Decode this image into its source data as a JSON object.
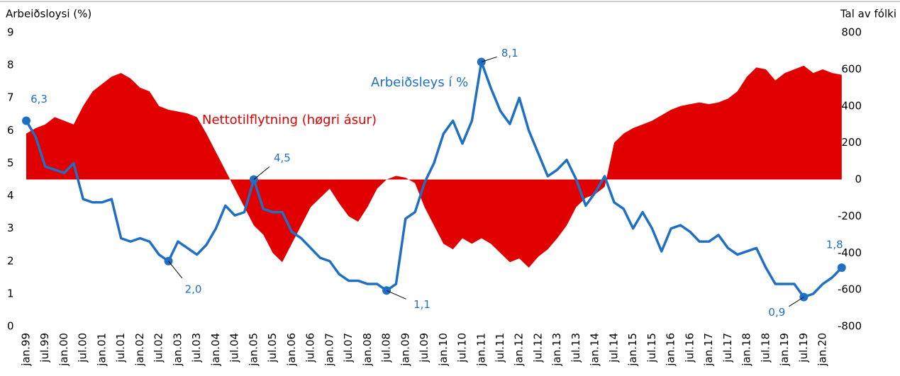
{
  "chart_data": {
    "type": "line",
    "ylabel": "Arbeiðsloysi (%)",
    "y2label": "Tal av fólki",
    "categories": [
      "jan.99",
      null,
      "jul.99",
      null,
      "jan.00",
      null,
      "jul.00",
      null,
      "jan.01",
      null,
      "jul.01",
      null,
      "jan.02",
      null,
      "jul.02",
      null,
      "jan.03",
      null,
      "jul.03",
      null,
      "jan.04",
      null,
      "jul.04",
      null,
      "jan.05",
      null,
      "jul.05",
      null,
      "jan.06",
      null,
      "jul.06",
      null,
      "jan.07",
      null,
      "jul.07",
      null,
      "jan.08",
      null,
      "jul.08",
      null,
      "jan.09",
      null,
      "jul.09",
      null,
      "jan.10",
      null,
      "jul.10",
      null,
      "jan.11",
      null,
      "jul.11",
      null,
      "jan.12",
      null,
      "jul.12",
      null,
      "jan.13",
      null,
      "jul.13",
      null,
      "jan.14",
      null,
      "jul.14",
      null,
      "jan.15",
      null,
      "jul.15",
      null,
      "jan.16",
      null,
      "jul.16",
      null,
      "jan.17",
      null,
      "jul.17",
      null,
      "jan.18",
      null,
      "jul.18",
      null,
      "jan.19",
      null,
      "jul.19",
      null,
      "jan.20",
      null,
      null
    ],
    "series": [
      {
        "name": "Arbeiðsleys í %",
        "color": "#1f6fc5",
        "axis": "y",
        "values": [
          6.3,
          5.8,
          4.9,
          4.8,
          4.7,
          5.0,
          3.9,
          3.8,
          3.8,
          3.9,
          2.7,
          2.6,
          2.7,
          2.6,
          2.2,
          2.0,
          2.6,
          2.4,
          2.2,
          2.5,
          3.0,
          3.7,
          3.4,
          3.5,
          4.5,
          3.6,
          3.5,
          3.5,
          2.9,
          2.7,
          2.4,
          2.1,
          2.0,
          1.6,
          1.4,
          1.4,
          1.3,
          1.3,
          1.1,
          1.3,
          3.3,
          3.5,
          4.4,
          5.0,
          5.9,
          6.3,
          5.6,
          6.3,
          8.1,
          7.3,
          6.6,
          6.2,
          7.0,
          6.0,
          5.3,
          4.6,
          4.8,
          5.1,
          4.5,
          3.7,
          4.1,
          4.6,
          3.8,
          3.6,
          3.0,
          3.5,
          3.0,
          2.3,
          3.0,
          3.1,
          2.9,
          2.6,
          2.6,
          2.8,
          2.4,
          2.2,
          2.3,
          2.4,
          1.8,
          1.3,
          1.3,
          1.3,
          0.9,
          1.0,
          1.3,
          1.5,
          1.8
        ],
        "value_labels": [
          "6,3",
          null,
          null,
          null,
          null,
          null,
          null,
          null,
          null,
          null,
          null,
          null,
          null,
          null,
          null,
          "2,0",
          null,
          null,
          null,
          null,
          null,
          null,
          null,
          null,
          "4,5",
          null,
          null,
          null,
          null,
          null,
          null,
          null,
          null,
          null,
          null,
          null,
          null,
          null,
          "1,1",
          null,
          null,
          null,
          null,
          null,
          null,
          null,
          null,
          null,
          "8,1",
          null,
          null,
          null,
          null,
          null,
          null,
          null,
          null,
          null,
          null,
          null,
          null,
          null,
          null,
          null,
          null,
          null,
          null,
          null,
          null,
          null,
          null,
          null,
          null,
          null,
          null,
          null,
          null,
          null,
          null,
          null,
          null,
          null,
          "0,9",
          null,
          null,
          null,
          "1,8"
        ]
      },
      {
        "name": "Nettotilflytning (høgri ásur)",
        "color": "#e00000",
        "axis": "y2",
        "values": [
          250,
          280,
          300,
          340,
          320,
          300,
          400,
          480,
          520,
          560,
          580,
          550,
          500,
          480,
          400,
          380,
          370,
          360,
          340,
          250,
          150,
          50,
          -50,
          -150,
          -250,
          -300,
          -400,
          -450,
          -350,
          -250,
          -150,
          -100,
          -50,
          -130,
          -200,
          -230,
          -150,
          -50,
          0,
          20,
          10,
          -20,
          -150,
          -250,
          -350,
          -380,
          -320,
          -350,
          -320,
          -350,
          -400,
          -450,
          -430,
          -480,
          -420,
          -380,
          -320,
          -250,
          -150,
          -100,
          -80,
          -40,
          200,
          250,
          280,
          300,
          320,
          350,
          380,
          400,
          410,
          420,
          410,
          420,
          440,
          480,
          560,
          610,
          600,
          540,
          580,
          600,
          620,
          580,
          600,
          580,
          570
        ]
      }
    ],
    "ylim": [
      0,
      9
    ],
    "yticks": [
      0,
      1,
      2,
      3,
      4,
      5,
      6,
      7,
      8,
      9
    ],
    "y2lim": [
      -800,
      800
    ],
    "y2ticks": [
      -800,
      -600,
      -400,
      -200,
      0,
      200,
      400,
      600,
      800
    ]
  }
}
